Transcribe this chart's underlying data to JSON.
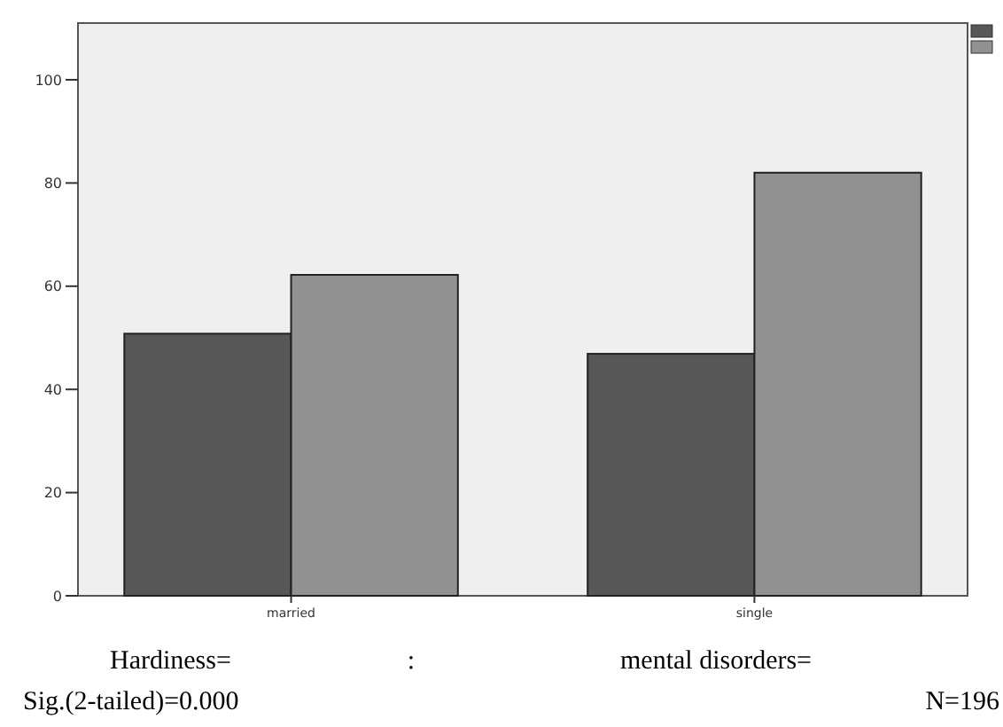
{
  "chart_data": {
    "type": "bar",
    "categories": [
      "married",
      "single"
    ],
    "series": [
      {
        "color": "#575757",
        "values": [
          50.8,
          46.9
        ]
      },
      {
        "color": "#919191",
        "values": [
          62.2,
          82
        ]
      }
    ],
    "ylim": [
      0,
      111
    ],
    "yticks": [
      0,
      20,
      40,
      60,
      80,
      100
    ],
    "grid": false,
    "annotations": [
      "Hardiness=",
      ":",
      "mental disorders=",
      "Sig.(2-tailed)=0.000",
      "N=196"
    ]
  }
}
